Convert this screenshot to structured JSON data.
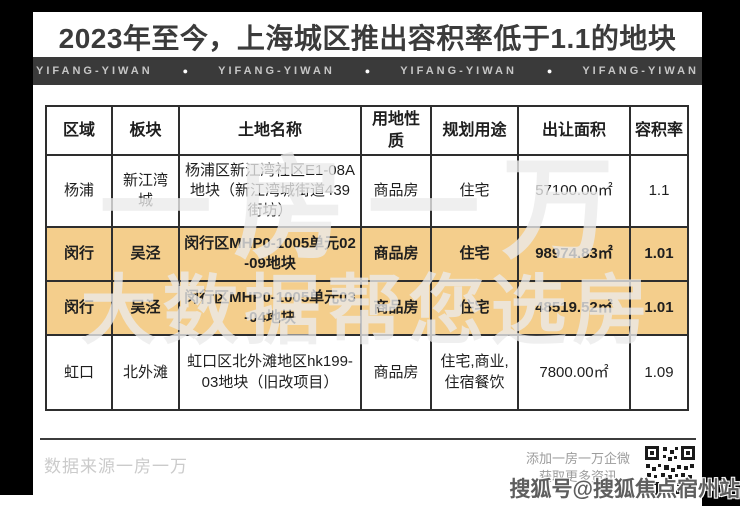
{
  "page": {
    "title": "2023年至今，上海城区推出容积率低于1.1的地块",
    "brand_banner": {
      "items": [
        "YIFANG-YIWAN",
        "YIFANG-YIWAN",
        "YIFANG-YIWAN",
        "YIFANG-YIWAN"
      ],
      "separator": "●"
    }
  },
  "table": {
    "columns": [
      "区域",
      "板块",
      "土地名称",
      "用地性质",
      "规划用途",
      "出让面积",
      "容积率"
    ],
    "rows": [
      {
        "highlighted": false,
        "cells": [
          "杨浦",
          "新江湾城",
          "杨浦区新江湾社区E1-08A地块（新江湾城街道439街坊）",
          "商品房",
          "住宅",
          "57100.00㎡",
          "1.1"
        ]
      },
      {
        "highlighted": true,
        "cells": [
          "闵行",
          "吴泾",
          "闵行区MHP0-1005单元02-09地块",
          "商品房",
          "住宅",
          "98974.83㎡",
          "1.01"
        ]
      },
      {
        "highlighted": true,
        "cells": [
          "闵行",
          "吴泾",
          "闵行区MHP0-1005单元03-04地块",
          "商品房",
          "住宅",
          "48519.52㎡",
          "1.01"
        ]
      },
      {
        "highlighted": false,
        "cells": [
          "虹口",
          "北外滩",
          "虹口区北外滩地区hk199-03地块（旧改项目）",
          "商品房",
          "住宅,商业,住宿餐饮",
          "7800.00㎡",
          "1.09"
        ]
      }
    ]
  },
  "watermark": {
    "line1": "一房一万",
    "line2": "大数据帮您选房"
  },
  "footer": {
    "source": "数据来源一房一万",
    "qr_caption_line1": "添加一房一万企微",
    "qr_caption_line2": "获取更多资讯",
    "sohu_watermark": "搜狐号@搜狐焦点宿州站"
  },
  "colors": {
    "highlight_row": "#f4ce8c",
    "banner_bg": "#3a3a3a",
    "frame": "#000000",
    "title_text": "#3b3b3b"
  }
}
